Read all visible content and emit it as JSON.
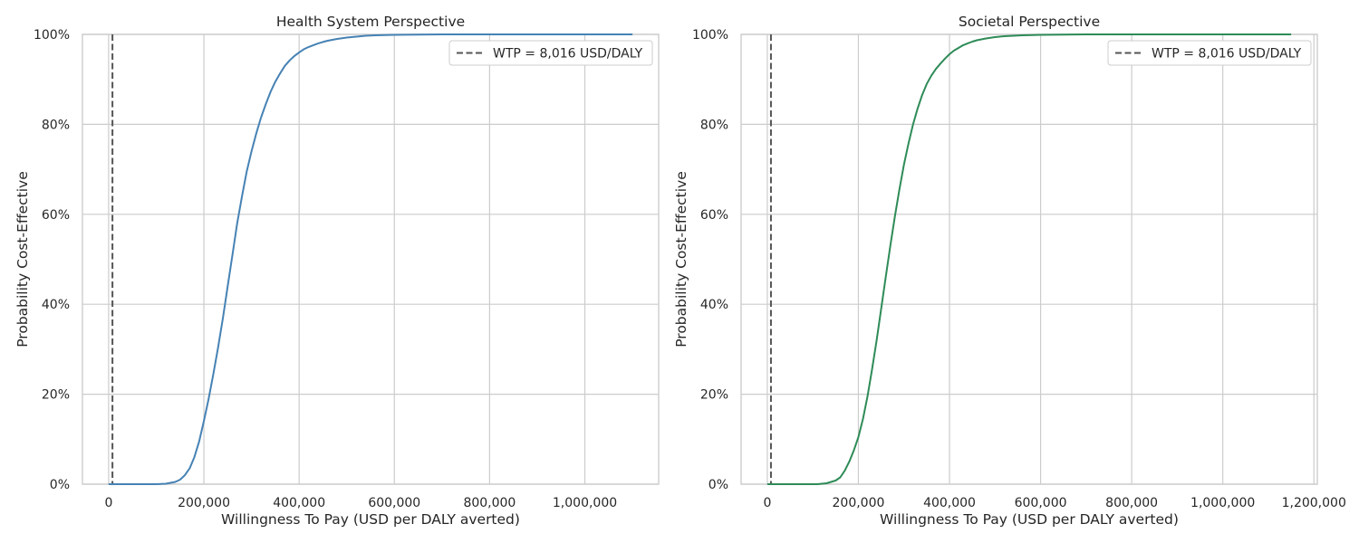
{
  "chart_data": [
    {
      "type": "line",
      "title": "Health System Perspective",
      "xlabel": "Willingness To Pay (USD per DALY averted)",
      "ylabel": "Probability Cost-Effective",
      "xlim": [
        -55000,
        1155000
      ],
      "ylim": [
        0,
        1
      ],
      "xticks": [
        0,
        200000,
        400000,
        600000,
        800000,
        1000000
      ],
      "xtick_labels": [
        "0",
        "200,000",
        "400,000",
        "600,000",
        "800,000",
        "1,000,000"
      ],
      "yticks": [
        0,
        0.2,
        0.4,
        0.6,
        0.8,
        1.0
      ],
      "ytick_labels": [
        "0%",
        "20%",
        "40%",
        "60%",
        "80%",
        "100%"
      ],
      "grid": true,
      "legend_position": "top-right",
      "wtp": {
        "value": 8016,
        "label": "WTP = 8,016 USD/DALY",
        "color": "#555555",
        "style": "dashed"
      },
      "series": [
        {
          "color": "#4682b4",
          "x": [
            0,
            100000,
            120000,
            140000,
            150000,
            160000,
            170000,
            180000,
            190000,
            200000,
            210000,
            220000,
            230000,
            240000,
            250000,
            260000,
            270000,
            280000,
            290000,
            300000,
            310000,
            320000,
            330000,
            340000,
            350000,
            360000,
            370000,
            380000,
            390000,
            400000,
            410000,
            420000,
            430000,
            440000,
            450000,
            460000,
            470000,
            480000,
            500000,
            520000,
            540000,
            560000,
            600000,
            700000,
            1100000
          ],
          "y": [
            0,
            0,
            0.001,
            0.005,
            0.01,
            0.02,
            0.035,
            0.06,
            0.095,
            0.14,
            0.19,
            0.245,
            0.305,
            0.37,
            0.44,
            0.51,
            0.58,
            0.64,
            0.695,
            0.74,
            0.78,
            0.815,
            0.845,
            0.872,
            0.895,
            0.913,
            0.93,
            0.942,
            0.952,
            0.96,
            0.967,
            0.972,
            0.976,
            0.98,
            0.983,
            0.986,
            0.988,
            0.99,
            0.993,
            0.995,
            0.997,
            0.998,
            0.999,
            1.0,
            1.0
          ]
        }
      ]
    },
    {
      "type": "line",
      "title": "Societal Perspective",
      "xlabel": "Willingness To Pay (USD per DALY averted)",
      "ylabel": "Probability Cost-Effective",
      "xlim": [
        -57500,
        1207500
      ],
      "ylim": [
        0,
        1
      ],
      "xticks": [
        0,
        200000,
        400000,
        600000,
        800000,
        1000000,
        1200000
      ],
      "xtick_labels": [
        "0",
        "200,000",
        "400,000",
        "600,000",
        "800,000",
        "1,000,000",
        "1,200,000"
      ],
      "yticks": [
        0,
        0.2,
        0.4,
        0.6,
        0.8,
        1.0
      ],
      "ytick_labels": [
        "0%",
        "20%",
        "40%",
        "60%",
        "80%",
        "100%"
      ],
      "grid": true,
      "legend_position": "top-right",
      "wtp": {
        "value": 8016,
        "label": "WTP = 8,016 USD/DALY",
        "color": "#555555",
        "style": "dashed"
      },
      "series": [
        {
          "color": "#2e8b57",
          "x": [
            0,
            110000,
            130000,
            150000,
            160000,
            170000,
            180000,
            190000,
            200000,
            210000,
            220000,
            230000,
            240000,
            250000,
            260000,
            270000,
            280000,
            290000,
            300000,
            310000,
            320000,
            330000,
            340000,
            350000,
            360000,
            370000,
            380000,
            390000,
            400000,
            410000,
            420000,
            430000,
            440000,
            450000,
            460000,
            470000,
            480000,
            500000,
            520000,
            540000,
            560000,
            600000,
            700000,
            1150000
          ],
          "y": [
            0,
            0,
            0.002,
            0.008,
            0.015,
            0.03,
            0.05,
            0.075,
            0.105,
            0.145,
            0.195,
            0.255,
            0.32,
            0.39,
            0.46,
            0.53,
            0.595,
            0.655,
            0.71,
            0.758,
            0.8,
            0.835,
            0.865,
            0.89,
            0.908,
            0.923,
            0.935,
            0.946,
            0.956,
            0.964,
            0.97,
            0.976,
            0.98,
            0.984,
            0.987,
            0.989,
            0.991,
            0.994,
            0.996,
            0.997,
            0.998,
            0.999,
            1.0,
            1.0
          ]
        }
      ]
    }
  ]
}
